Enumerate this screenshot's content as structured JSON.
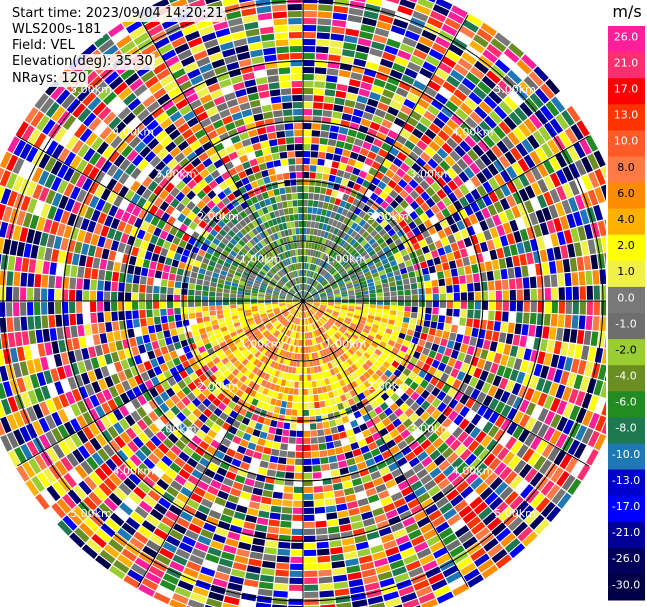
{
  "info": {
    "start_time": "Start time: 2023/09/04 14:20:21",
    "instrument": "WLS200s-181",
    "field": "Field: VEL",
    "elevation": "Elevation(deg): 35.30",
    "nrays": "NRays: 120"
  },
  "chart_data": {
    "type": "heatmap",
    "projection": "polar-ppi",
    "field": "VEL",
    "units": "m/s",
    "n_rays": 120,
    "range_rings_km": [
      1,
      2,
      3,
      4,
      5
    ],
    "range_labels": [
      "1.00km",
      "2.00km",
      "3.00km",
      "4.00km",
      "5.00km"
    ],
    "valid_data_range_km": 1.9,
    "max_range_km": 5.5,
    "colorbar": {
      "label": "m/s",
      "ticks": [
        "26.0",
        "21.0",
        "17.0",
        "13.0",
        "10.0",
        "8.0",
        "6.0",
        "4.0",
        "2.0",
        "1.0",
        "0.0",
        "-1.0",
        "-2.0",
        "-4.0",
        "-6.0",
        "-8.0",
        "-10.0",
        "-13.0",
        "-17.0",
        "-21.0",
        "-26.0",
        "-30.0"
      ],
      "colors": [
        "#ff1f9b",
        "#ff2f6f",
        "#ff0000",
        "#ff3300",
        "#ff5a28",
        "#ff7a45",
        "#ff8c00",
        "#ffb000",
        "#ffff00",
        "#f0f046",
        "#787878",
        "#6e6e6e",
        "#9acd32",
        "#6b8e23",
        "#228b22",
        "#1e7850",
        "#1e78b4",
        "#0000cd",
        "#0000ff",
        "#000096",
        "#00005a",
        "#000046"
      ]
    },
    "pattern": {
      "north_half": "negative velocities (green / olive / grey)",
      "south_half": "positive velocities (yellow / orange)",
      "beyond_valid_range": "noise"
    }
  }
}
